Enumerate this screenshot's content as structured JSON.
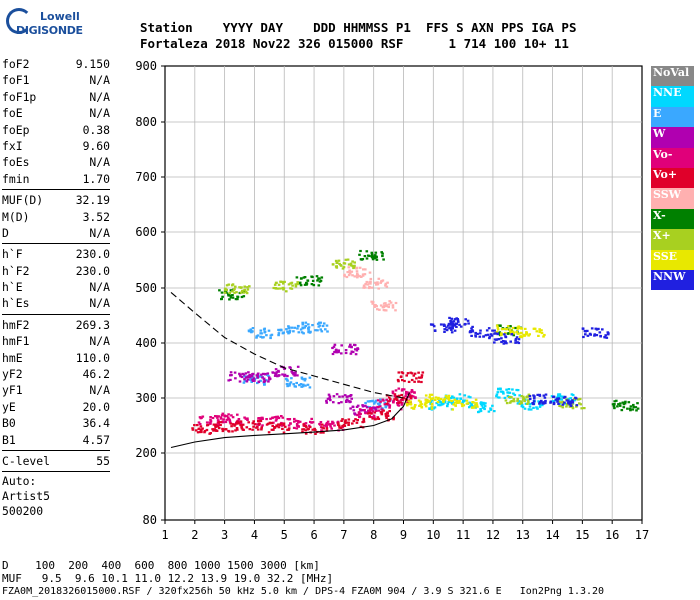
{
  "logo": {
    "line1": "Lowell",
    "line2": "DIGISONDE"
  },
  "header": {
    "row1": "Station    YYYY DAY    DDD HHMMSS P1  FFS S AXN PPS IGA PS",
    "row2": "Fortaleza 2018 Nov22 326 015000 RSF      1 714 100 10+ 11"
  },
  "params": {
    "group1": [
      {
        "k": "foF2",
        "v": "9.150"
      },
      {
        "k": "foF1",
        "v": "N/A"
      },
      {
        "k": "foF1p",
        "v": "N/A"
      },
      {
        "k": "foE",
        "v": "N/A"
      },
      {
        "k": "foEp",
        "v": "0.38"
      },
      {
        "k": "fxI",
        "v": "9.60"
      },
      {
        "k": "foEs",
        "v": "N/A"
      },
      {
        "k": "fmin",
        "v": "1.70"
      }
    ],
    "group2": [
      {
        "k": "MUF(D)",
        "v": "32.19"
      },
      {
        "k": "M(D)",
        "v": "3.52"
      },
      {
        "k": "D",
        "v": "N/A"
      }
    ],
    "group3": [
      {
        "k": "h`F",
        "v": "230.0"
      },
      {
        "k": "h`F2",
        "v": "230.0"
      },
      {
        "k": "h`E",
        "v": "N/A"
      },
      {
        "k": "h`Es",
        "v": "N/A"
      }
    ],
    "group4": [
      {
        "k": "hmF2",
        "v": "269.3"
      },
      {
        "k": "hmF1",
        "v": "N/A"
      },
      {
        "k": "hmE",
        "v": "110.0"
      },
      {
        "k": "yF2",
        "v": "46.2"
      },
      {
        "k": "yF1",
        "v": "N/A"
      },
      {
        "k": "yE",
        "v": "20.0"
      },
      {
        "k": "B0",
        "v": "36.4"
      },
      {
        "k": "B1",
        "v": "4.57"
      }
    ],
    "group5": [
      {
        "k": "C-level",
        "v": "55"
      }
    ],
    "footer_lines": [
      "Auto:",
      "Artist5",
      "500200"
    ]
  },
  "legend": [
    {
      "label": "NoVal",
      "color": "#888888"
    },
    {
      "label": "NNE",
      "color": "#00d8ff"
    },
    {
      "label": "E",
      "color": "#3aa8ff"
    },
    {
      "label": "W",
      "color": "#b000b0"
    },
    {
      "label": "Vo-",
      "color": "#e0007a"
    },
    {
      "label": "Vo+",
      "color": "#e0002a"
    },
    {
      "label": "SSW",
      "color": "#ffb0b0"
    },
    {
      "label": "X-",
      "color": "#008000"
    },
    {
      "label": "X+",
      "color": "#a8d020"
    },
    {
      "label": "SSE",
      "color": "#e8e800"
    },
    {
      "label": "NNW",
      "color": "#2020e0"
    }
  ],
  "bottom": {
    "d_row": "D    100  200  400  600  800 1000 1500 3000 [km]",
    "muf_row": "MUF   9.5  9.6 10.1 11.0 12.2 13.9 19.0 32.2 [MHz]",
    "file_row": "FZA0M_2018326015000.RSF / 320fx256h 50 kHz 5.0 km / DPS-4 FZA0M 904 / 3.9 S 321.6 E   Ion2Png 1.3.20"
  },
  "chart_data": {
    "type": "scatter",
    "xlim": [
      1,
      17
    ],
    "ylim": [
      80,
      900
    ],
    "x_ticks": [
      "1",
      "2",
      "3",
      "4",
      "5",
      "6",
      "7",
      "8",
      "9",
      "10",
      "11",
      "12",
      "13",
      "14",
      "15",
      "16",
      "17"
    ],
    "y_ticks": [
      "80",
      "200",
      "300",
      "400",
      "500",
      "600",
      "700",
      "800",
      "900"
    ],
    "y_tick_values": [
      80,
      200,
      300,
      400,
      500,
      600,
      700,
      800,
      900
    ],
    "grid": true,
    "series": [
      {
        "name": "NNE",
        "points": [
          [
            10.2,
            290
          ],
          [
            10.8,
            300
          ],
          [
            12.5,
            310
          ],
          [
            13.2,
            290
          ],
          [
            14.3,
            300
          ],
          [
            11.6,
            285
          ]
        ]
      },
      {
        "name": "E",
        "points": [
          [
            4.2,
            420
          ],
          [
            5.2,
            425
          ],
          [
            6.0,
            430
          ],
          [
            4.0,
            335
          ],
          [
            5.4,
            330
          ],
          [
            8.1,
            290
          ]
        ]
      },
      {
        "name": "W",
        "points": [
          [
            3.5,
            340
          ],
          [
            4.3,
            340
          ],
          [
            5.0,
            350
          ],
          [
            7.0,
            390
          ],
          [
            6.8,
            300
          ],
          [
            7.6,
            280
          ]
        ]
      },
      {
        "name": "Vo-",
        "points": [
          [
            2.5,
            260
          ],
          [
            3.3,
            265
          ],
          [
            4.5,
            260
          ],
          [
            5.5,
            255
          ],
          [
            6.5,
            252
          ],
          [
            7.8,
            275
          ],
          [
            8.5,
            290
          ],
          [
            9.0,
            310
          ]
        ]
      },
      {
        "name": "Vo+",
        "points": [
          [
            2.3,
            245
          ],
          [
            3.0,
            250
          ],
          [
            3.8,
            252
          ],
          [
            4.8,
            248
          ],
          [
            6.0,
            245
          ],
          [
            7.2,
            255
          ],
          [
            8.2,
            270
          ],
          [
            8.8,
            300
          ],
          [
            9.2,
            340
          ]
        ]
      },
      {
        "name": "SSW",
        "points": [
          [
            7.4,
            530
          ],
          [
            8.0,
            510
          ],
          [
            8.3,
            470
          ]
        ]
      },
      {
        "name": "X-",
        "points": [
          [
            3.2,
            490
          ],
          [
            5.8,
            515
          ],
          [
            7.9,
            560
          ],
          [
            12.5,
            425
          ],
          [
            16.4,
            288
          ]
        ]
      },
      {
        "name": "X+",
        "points": [
          [
            3.4,
            500
          ],
          [
            5.0,
            505
          ],
          [
            7.0,
            545
          ],
          [
            12.8,
            300
          ],
          [
            14.6,
            292
          ]
        ]
      },
      {
        "name": "SSE",
        "points": [
          [
            9.5,
            290
          ],
          [
            10.1,
            300
          ],
          [
            11.0,
            290
          ],
          [
            12.5,
            425
          ],
          [
            13.3,
            420
          ]
        ]
      },
      {
        "name": "NNW",
        "points": [
          [
            10.3,
            430
          ],
          [
            10.9,
            440
          ],
          [
            11.6,
            420
          ],
          [
            12.4,
            410
          ],
          [
            13.6,
            300
          ],
          [
            14.4,
            295
          ],
          [
            15.4,
            420
          ]
        ]
      }
    ],
    "curves": [
      {
        "style": "solid",
        "points": [
          [
            1.2,
            210
          ],
          [
            2.0,
            220
          ],
          [
            3.0,
            228
          ],
          [
            4.0,
            232
          ],
          [
            5.0,
            235
          ],
          [
            6.0,
            238
          ],
          [
            7.0,
            242
          ],
          [
            8.0,
            250
          ],
          [
            8.6,
            262
          ],
          [
            9.0,
            285
          ],
          [
            9.2,
            310
          ]
        ]
      },
      {
        "style": "dashed",
        "points": [
          [
            1.2,
            492
          ],
          [
            2.0,
            455
          ],
          [
            3.0,
            410
          ],
          [
            4.0,
            380
          ],
          [
            5.0,
            355
          ],
          [
            6.0,
            340
          ],
          [
            7.0,
            325
          ],
          [
            8.0,
            310
          ],
          [
            9.0,
            300
          ]
        ]
      }
    ]
  }
}
